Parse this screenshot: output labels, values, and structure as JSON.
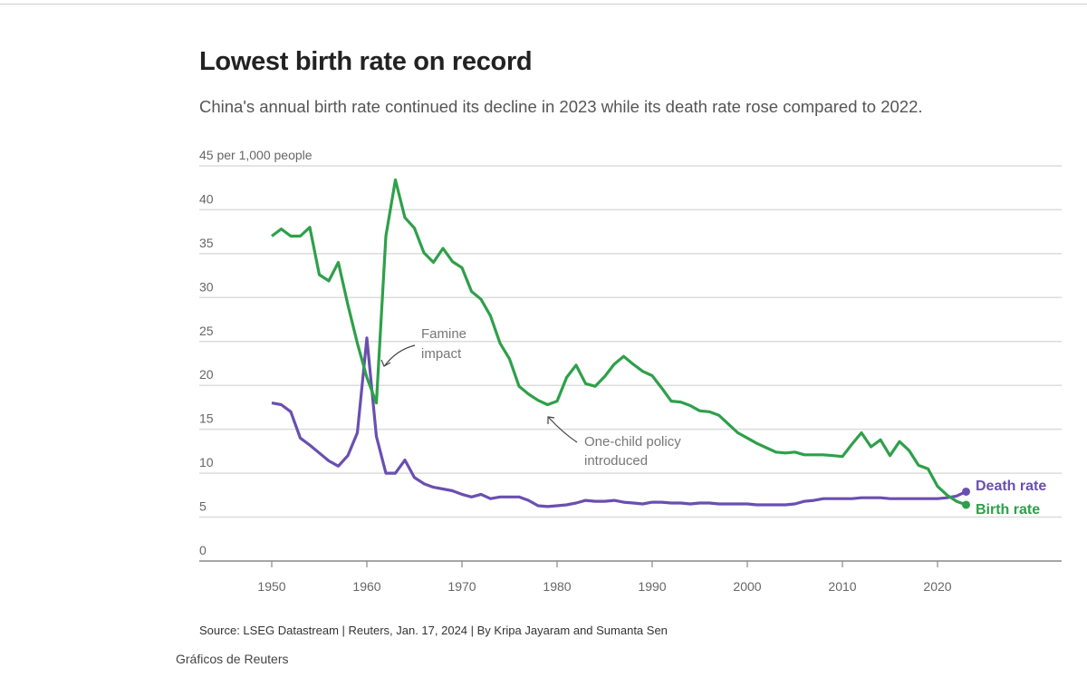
{
  "title": "Lowest birth rate on record",
  "subtitle": "China's annual birth rate continued its decline in 2023 while its death rate rose compared to 2022.",
  "source": "Source: LSEG Datastream | Reuters, Jan. 17, 2024 | By Kripa Jayaram and Sumanta Sen",
  "credit": "Gráficos de Reuters",
  "chart_data": {
    "type": "line",
    "title": "Lowest birth rate on record",
    "ylabel": "45 per 1,000 people",
    "ylim": [
      0,
      45
    ],
    "yticks": [
      "0",
      "5",
      "10",
      "15",
      "20",
      "25",
      "30",
      "35",
      "40",
      "45 per 1,000 people"
    ],
    "ytick_values": [
      0,
      5,
      10,
      15,
      20,
      25,
      30,
      35,
      40,
      45
    ],
    "xlim": [
      1943,
      2036
    ],
    "xticks": [
      "1950",
      "1960",
      "1970",
      "1980",
      "1990",
      "2000",
      "2010",
      "2020"
    ],
    "xtick_values": [
      1950,
      1960,
      1970,
      1980,
      1990,
      2000,
      2010,
      2020
    ],
    "grid": true,
    "x_start": 1950,
    "series": [
      {
        "name": "Death rate",
        "color": "#6a4fb0",
        "values": [
          18.0,
          17.8,
          17.0,
          14.0,
          13.2,
          12.3,
          11.4,
          10.8,
          12.0,
          14.6,
          25.4,
          14.2,
          10.0,
          10.0,
          11.5,
          9.5,
          8.8,
          8.4,
          8.2,
          8.0,
          7.6,
          7.3,
          7.6,
          7.1,
          7.3,
          7.3,
          7.3,
          6.9,
          6.3,
          6.2,
          6.3,
          6.4,
          6.6,
          6.9,
          6.8,
          6.8,
          6.9,
          6.7,
          6.6,
          6.5,
          6.7,
          6.7,
          6.6,
          6.6,
          6.5,
          6.6,
          6.6,
          6.5,
          6.5,
          6.5,
          6.5,
          6.4,
          6.4,
          6.4,
          6.4,
          6.5,
          6.8,
          6.9,
          7.1,
          7.1,
          7.1,
          7.1,
          7.2,
          7.2,
          7.2,
          7.1,
          7.1,
          7.1,
          7.1,
          7.1,
          7.1,
          7.2,
          7.4,
          7.9
        ]
      },
      {
        "name": "Birth rate",
        "color": "#2ea04a",
        "values": [
          37.0,
          37.8,
          37.0,
          37.0,
          38.0,
          32.6,
          31.9,
          34.0,
          29.2,
          24.8,
          20.9,
          18.0,
          37.0,
          43.4,
          39.1,
          37.9,
          35.1,
          34.0,
          35.6,
          34.1,
          33.4,
          30.7,
          29.8,
          27.9,
          24.8,
          23.0,
          19.9,
          19.0,
          18.3,
          17.8,
          18.2,
          20.9,
          22.3,
          20.2,
          19.9,
          21.0,
          22.4,
          23.3,
          22.4,
          21.6,
          21.1,
          19.7,
          18.2,
          18.1,
          17.7,
          17.1,
          17.0,
          16.6,
          15.6,
          14.6,
          14.0,
          13.4,
          12.9,
          12.4,
          12.3,
          12.4,
          12.1,
          12.1,
          12.1,
          12.0,
          11.9,
          13.3,
          14.6,
          13.0,
          13.8,
          12.0,
          13.6,
          12.6,
          10.9,
          10.5,
          8.5,
          7.5,
          6.8,
          6.4
        ]
      }
    ],
    "annotations": [
      {
        "text": [
          "Famine",
          "impact"
        ],
        "year": 1961
      },
      {
        "text": [
          "One-child policy",
          "introduced"
        ],
        "year": 1979
      }
    ]
  }
}
